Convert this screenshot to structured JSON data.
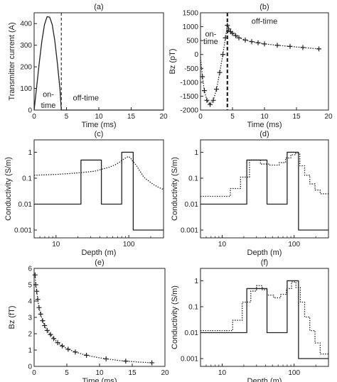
{
  "chart_data": [
    {
      "id": "a",
      "panel_label": "(a)",
      "type": "line",
      "xlabel": "Time (ms)",
      "ylabel": "Transmitter current (A)",
      "xlim": [
        0,
        20
      ],
      "ylim": [
        0,
        450
      ],
      "xticks": [
        0,
        5,
        10,
        15,
        20
      ],
      "yticks": [
        0,
        100,
        200,
        300,
        400
      ],
      "log_x": false,
      "log_y": false,
      "series": [
        {
          "style": "solid",
          "x": [
            0,
            0.4,
            0.8,
            1.2,
            1.6,
            2.0,
            2.4,
            2.8,
            3.2,
            3.6,
            4.0,
            4.2,
            20
          ],
          "y": [
            0,
            110,
            220,
            320,
            395,
            432,
            430,
            395,
            320,
            215,
            95,
            0,
            0
          ]
        }
      ],
      "vlines": [
        {
          "x": 4.2,
          "style": "dashed"
        }
      ],
      "annotations": [
        {
          "text": "on-",
          "x": 2.2,
          "y": 60
        },
        {
          "text": "time",
          "x": 2.2,
          "y": 10
        },
        {
          "text": "off-time",
          "x": 8,
          "y": 45
        }
      ]
    },
    {
      "id": "b",
      "panel_label": "(b)",
      "type": "line",
      "xlabel": "Time (ms)",
      "ylabel": "Bz (pT)",
      "xlim": [
        0,
        20
      ],
      "ylim": [
        -2000,
        1500
      ],
      "xticks": [
        0,
        5,
        10,
        15,
        20
      ],
      "yticks": [
        -2000,
        -1500,
        -1000,
        -500,
        0,
        500,
        1000,
        1500
      ],
      "log_x": false,
      "log_y": false,
      "series": [
        {
          "style": "dotted",
          "x": [
            0,
            0.3,
            0.6,
            1.0,
            1.5,
            2.0,
            2.5,
            3.0,
            3.5,
            3.9,
            4.2,
            4.4,
            4.7,
            5.0,
            5.5,
            6.0,
            7.0,
            8.0,
            9.0,
            10.0,
            12.0,
            14.0,
            16.0,
            18.5
          ],
          "y": [
            -100,
            -800,
            -1300,
            -1650,
            -1800,
            -1650,
            -1250,
            -650,
            0,
            600,
            1050,
            920,
            820,
            760,
            680,
            600,
            520,
            460,
            420,
            380,
            330,
            290,
            250,
            200
          ]
        },
        {
          "style": "markers",
          "x": [
            0.3,
            0.6,
            1.0,
            1.5,
            2.0,
            2.5,
            3.0,
            3.5,
            3.9,
            4.2,
            4.4,
            4.7,
            5.0,
            5.5,
            6.0,
            7.0,
            8.0,
            9.0,
            10.0,
            12.0,
            14.0,
            16.0,
            18.5
          ],
          "y": [
            -800,
            -1300,
            -1650,
            -1800,
            -1650,
            -1250,
            -650,
            0,
            600,
            1050,
            920,
            820,
            760,
            680,
            600,
            520,
            460,
            420,
            380,
            330,
            290,
            250,
            200
          ]
        }
      ],
      "vlines": [
        {
          "x": 4.2,
          "style": "dashed-thick"
        }
      ],
      "annotations": [
        {
          "text": "on-",
          "x": 1.6,
          "y": 650
        },
        {
          "text": "time",
          "x": 1.6,
          "y": 380
        },
        {
          "text": "off-time",
          "x": 10,
          "y": 1100
        }
      ]
    },
    {
      "id": "c",
      "panel_label": "(c)",
      "type": "line",
      "xlabel": "Depth (m)",
      "ylabel": "Conductivity (S/m)",
      "xlim": [
        5,
        300
      ],
      "ylim": [
        0.0005,
        3
      ],
      "xticks": [
        10,
        100
      ],
      "yticks": [
        0.001,
        0.01,
        0.1,
        1
      ],
      "ytick_labels": [
        "0.001",
        "0.01",
        "0.1",
        "1"
      ],
      "log_x": true,
      "log_y": true,
      "series": [
        {
          "style": "solid",
          "x": [
            5,
            22,
            22,
            42,
            42,
            80,
            80,
            115,
            115,
            300
          ],
          "y": [
            0.01,
            0.01,
            0.5,
            0.5,
            0.01,
            0.01,
            1,
            1,
            0.001,
            0.001
          ]
        },
        {
          "style": "dotted",
          "x": [
            5,
            10,
            15,
            20,
            25,
            30,
            35,
            40,
            45,
            50,
            55,
            60,
            65,
            70,
            75,
            80,
            85,
            90,
            95,
            100,
            105,
            110,
            120,
            130,
            140,
            150,
            160,
            180,
            200,
            220,
            250,
            280,
            300
          ],
          "y": [
            0.13,
            0.14,
            0.15,
            0.16,
            0.17,
            0.18,
            0.19,
            0.21,
            0.23,
            0.25,
            0.27,
            0.3,
            0.33,
            0.37,
            0.42,
            0.48,
            0.54,
            0.6,
            0.65,
            0.68,
            0.62,
            0.5,
            0.38,
            0.28,
            0.2,
            0.15,
            0.11,
            0.085,
            0.068,
            0.056,
            0.046,
            0.04,
            0.037
          ]
        }
      ]
    },
    {
      "id": "d",
      "panel_label": "(d)",
      "type": "line",
      "xlabel": "Depth (m)",
      "ylabel": "Conductivity (S/m)",
      "xlim": [
        5,
        300
      ],
      "ylim": [
        0.0005,
        3
      ],
      "xticks": [
        10,
        100
      ],
      "yticks": [
        0.001,
        0.01,
        0.1,
        1
      ],
      "ytick_labels": [
        "0.001",
        "0.01",
        "0.1",
        "1"
      ],
      "log_x": true,
      "log_y": true,
      "series": [
        {
          "style": "solid",
          "x": [
            5,
            22,
            22,
            42,
            42,
            80,
            80,
            115,
            115,
            300
          ],
          "y": [
            0.01,
            0.01,
            0.5,
            0.5,
            0.01,
            0.01,
            1,
            1,
            0.001,
            0.001
          ]
        },
        {
          "style": "dotted",
          "x": [
            5,
            13,
            13,
            18,
            18,
            24,
            24,
            34,
            34,
            46,
            46,
            62,
            62,
            76,
            76,
            90,
            90,
            104,
            104,
            120,
            120,
            140,
            140,
            165,
            165,
            195,
            195,
            230,
            230,
            300
          ],
          "y": [
            0.02,
            0.02,
            0.04,
            0.04,
            0.11,
            0.11,
            0.5,
            0.5,
            0.35,
            0.35,
            0.32,
            0.32,
            0.4,
            0.4,
            0.6,
            0.6,
            0.8,
            0.8,
            0.9,
            0.9,
            0.3,
            0.3,
            0.13,
            0.13,
            0.06,
            0.06,
            0.035,
            0.035,
            0.025,
            0.025
          ]
        }
      ]
    },
    {
      "id": "e",
      "panel_label": "(e)",
      "type": "scatter",
      "xlabel": "Time (ms)",
      "ylabel": "Bz (fT)",
      "xlim": [
        0,
        20
      ],
      "ylim": [
        0,
        6
      ],
      "xticks": [
        0,
        5,
        10,
        15,
        20
      ],
      "yticks": [
        0,
        1,
        2,
        3,
        4,
        5,
        6
      ],
      "log_x": false,
      "log_y": false,
      "series": [
        {
          "style": "dotted",
          "x": [
            0.15,
            0.25,
            0.4,
            0.55,
            0.75,
            1.0,
            1.3,
            1.6,
            2.0,
            2.5,
            3.0,
            3.6,
            4.3,
            5.2,
            6.3,
            7.6,
            9.2,
            11.0,
            13.2,
            15.8,
            18.0
          ],
          "y": [
            5.6,
            5.0,
            4.6,
            4.1,
            3.6,
            3.2,
            2.8,
            2.5,
            2.2,
            1.95,
            1.7,
            1.45,
            1.25,
            1.05,
            0.88,
            0.72,
            0.58,
            0.46,
            0.35,
            0.27,
            0.22
          ]
        },
        {
          "style": "markers",
          "x": [
            0.15,
            0.25,
            0.4,
            0.55,
            0.75,
            1.0,
            1.3,
            1.6,
            2.0,
            2.5,
            3.0,
            3.6,
            4.3,
            5.2,
            6.3,
            8.0,
            11.0,
            14.0,
            18.0
          ],
          "y": [
            5.6,
            5.0,
            4.6,
            4.1,
            3.6,
            3.2,
            2.8,
            2.5,
            2.2,
            1.95,
            1.7,
            1.45,
            1.25,
            1.05,
            0.88,
            0.68,
            0.46,
            0.32,
            0.22
          ]
        }
      ]
    },
    {
      "id": "f",
      "panel_label": "(f)",
      "type": "line",
      "xlabel": "Depth (m)",
      "ylabel": "Conductivity (S/m)",
      "xlim": [
        5,
        300
      ],
      "ylim": [
        0.0005,
        3
      ],
      "xticks": [
        10,
        100
      ],
      "yticks": [
        0.001,
        0.01,
        0.1,
        1
      ],
      "ytick_labels": [
        "0.001",
        "0.01",
        "0.1",
        "1"
      ],
      "log_x": true,
      "log_y": true,
      "series": [
        {
          "style": "solid",
          "x": [
            5,
            22,
            22,
            42,
            42,
            80,
            80,
            115,
            115,
            300
          ],
          "y": [
            0.01,
            0.01,
            0.5,
            0.5,
            0.01,
            0.01,
            1,
            1,
            0.001,
            0.001
          ]
        },
        {
          "style": "dotted",
          "x": [
            5,
            14,
            14,
            19,
            19,
            25,
            25,
            30,
            30,
            36,
            36,
            42,
            42,
            52,
            52,
            65,
            65,
            78,
            78,
            92,
            92,
            106,
            106,
            122,
            122,
            140,
            140,
            165,
            165,
            195,
            195,
            230,
            230,
            300
          ],
          "y": [
            0.012,
            0.012,
            0.03,
            0.03,
            0.15,
            0.15,
            0.4,
            0.4,
            0.65,
            0.65,
            0.45,
            0.45,
            0.28,
            0.28,
            0.22,
            0.22,
            0.3,
            0.3,
            0.5,
            0.5,
            0.9,
            0.9,
            0.55,
            0.55,
            0.15,
            0.15,
            0.04,
            0.04,
            0.012,
            0.012,
            0.004,
            0.004,
            0.0015,
            0.0015
          ]
        }
      ]
    }
  ]
}
